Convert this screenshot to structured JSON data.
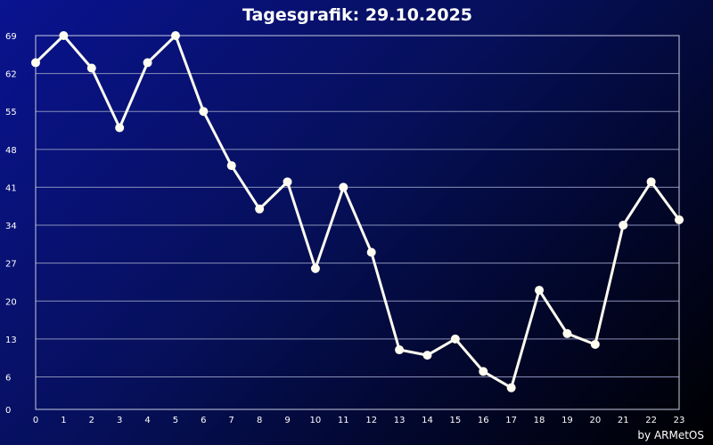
{
  "chart_data": {
    "type": "line",
    "title": "Tagesgrafik: 29.10.2025",
    "xlabel": "",
    "ylabel": "",
    "x": [
      0,
      1,
      2,
      3,
      4,
      5,
      6,
      7,
      8,
      9,
      10,
      11,
      12,
      13,
      14,
      15,
      16,
      17,
      18,
      19,
      20,
      21,
      22,
      23
    ],
    "x_ticks": [
      "0",
      "1",
      "2",
      "3",
      "4",
      "5",
      "6",
      "7",
      "8",
      "9",
      "10",
      "11",
      "12",
      "13",
      "14",
      "15",
      "16",
      "17",
      "18",
      "19",
      "20",
      "21",
      "22",
      "23"
    ],
    "y_ticks": [
      "0",
      "6",
      "13",
      "20",
      "27",
      "34",
      "41",
      "48",
      "55",
      "62",
      "69"
    ],
    "ylim": [
      0,
      69
    ],
    "xlim": [
      0,
      23
    ],
    "grid": true,
    "series": [
      {
        "values": [
          64,
          69,
          63,
          52,
          64,
          69,
          55,
          45,
          37,
          42,
          26,
          41,
          29,
          11,
          10,
          13,
          7,
          4,
          22,
          14,
          12,
          34,
          42,
          35
        ]
      }
    ],
    "line_color": "#fffdf0",
    "grid_color": "#8890b8"
  },
  "credit": "by ARMetOS"
}
